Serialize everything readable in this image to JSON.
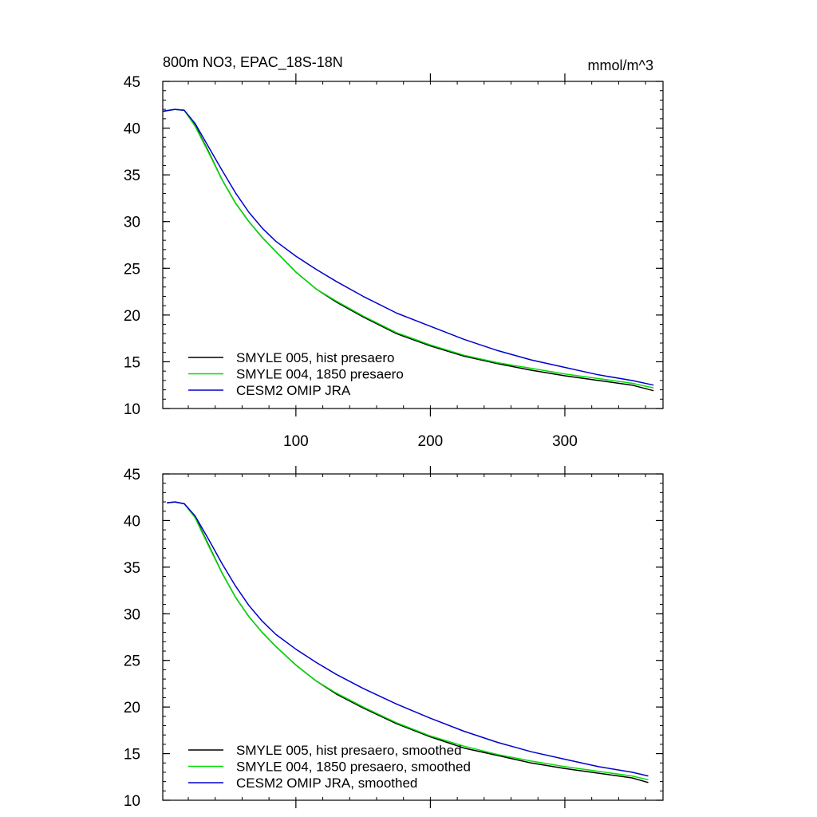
{
  "chart_data": [
    {
      "type": "line",
      "title": "800m NO3, EPAC_18S-18N",
      "units_label": "mmol/m^3",
      "xlim": [
        1,
        373
      ],
      "ylim": [
        10,
        45
      ],
      "y_ticks": [
        10,
        15,
        20,
        25,
        30,
        35,
        40,
        45
      ],
      "x_ticks": [
        100,
        200,
        300
      ],
      "x_tick_labels": [
        "100",
        "200",
        "300"
      ],
      "legend_position": "bottom-left",
      "series": [
        {
          "name": "SMYLE 005, hist presaero",
          "color": "#000000",
          "x": [
            1,
            10,
            17,
            25,
            35,
            45,
            55,
            65,
            75,
            85,
            100,
            115,
            130,
            150,
            175,
            200,
            225,
            250,
            275,
            300,
            325,
            350,
            366
          ],
          "y": [
            41.8,
            42.0,
            41.9,
            40.3,
            37.5,
            34.5,
            32.0,
            30.0,
            28.3,
            26.8,
            24.6,
            22.8,
            21.4,
            19.8,
            18.0,
            16.7,
            15.6,
            14.8,
            14.1,
            13.5,
            13.0,
            12.5,
            11.9
          ]
        },
        {
          "name": "SMYLE 004, 1850 presaero",
          "color": "#00dd00",
          "x": [
            1,
            10,
            17,
            25,
            35,
            45,
            55,
            65,
            75,
            85,
            100,
            115,
            130,
            150,
            175,
            200,
            225,
            250,
            275,
            300,
            325,
            350,
            366
          ],
          "y": [
            41.8,
            42.0,
            41.9,
            40.2,
            37.4,
            34.5,
            32.0,
            30.0,
            28.3,
            26.8,
            24.6,
            22.8,
            21.5,
            19.9,
            18.1,
            16.8,
            15.7,
            14.9,
            14.3,
            13.7,
            13.2,
            12.7,
            12.2
          ]
        },
        {
          "name": "CESM2 OMIP JRA",
          "color": "#0000cc",
          "x": [
            1,
            10,
            17,
            25,
            35,
            45,
            55,
            65,
            75,
            85,
            100,
            115,
            130,
            150,
            175,
            200,
            225,
            250,
            275,
            300,
            325,
            350,
            366
          ],
          "y": [
            41.8,
            42.0,
            41.9,
            40.5,
            38.0,
            35.5,
            33.1,
            31.0,
            29.3,
            27.9,
            26.3,
            24.9,
            23.6,
            22.0,
            20.2,
            18.8,
            17.4,
            16.2,
            15.2,
            14.4,
            13.6,
            13.0,
            12.5
          ]
        }
      ]
    },
    {
      "type": "line",
      "xlim": [
        1,
        373
      ],
      "ylim": [
        10,
        45
      ],
      "y_ticks": [
        10,
        15,
        20,
        25,
        30,
        35,
        40,
        45
      ],
      "x_ticks": [
        100,
        200,
        300
      ],
      "x_tick_labels": [],
      "legend_position": "bottom-left",
      "series": [
        {
          "name": "SMYLE 005, hist presaero, smoothed",
          "color": "#000000",
          "x": [
            4,
            10,
            17,
            25,
            35,
            45,
            55,
            65,
            75,
            85,
            100,
            115,
            130,
            150,
            175,
            200,
            225,
            250,
            275,
            300,
            325,
            350,
            362
          ],
          "y": [
            41.9,
            42.0,
            41.8,
            40.4,
            37.4,
            34.4,
            31.8,
            29.7,
            28.0,
            26.5,
            24.5,
            22.8,
            21.4,
            19.9,
            18.2,
            16.8,
            15.6,
            14.8,
            14.0,
            13.4,
            12.9,
            12.4,
            11.9
          ]
        },
        {
          "name": "SMYLE 004, 1850 presaero, smoothed",
          "color": "#00dd00",
          "x": [
            4,
            10,
            17,
            25,
            35,
            45,
            55,
            65,
            75,
            85,
            100,
            115,
            130,
            150,
            175,
            200,
            225,
            250,
            275,
            300,
            325,
            350,
            362
          ],
          "y": [
            41.9,
            42.0,
            41.8,
            40.3,
            37.3,
            34.4,
            31.8,
            29.7,
            28.0,
            26.5,
            24.5,
            22.8,
            21.5,
            20.0,
            18.3,
            16.9,
            15.8,
            14.9,
            14.2,
            13.6,
            13.1,
            12.6,
            12.2
          ]
        },
        {
          "name": "CESM2 OMIP JRA, smoothed",
          "color": "#0000cc",
          "x": [
            4,
            10,
            17,
            25,
            35,
            45,
            55,
            65,
            75,
            85,
            100,
            115,
            130,
            150,
            175,
            200,
            225,
            250,
            275,
            300,
            325,
            350,
            362
          ],
          "y": [
            41.9,
            42.0,
            41.8,
            40.5,
            38.0,
            35.4,
            33.0,
            30.9,
            29.2,
            27.8,
            26.2,
            24.8,
            23.5,
            22.0,
            20.3,
            18.8,
            17.4,
            16.2,
            15.2,
            14.4,
            13.6,
            13.0,
            12.6
          ]
        }
      ]
    }
  ]
}
